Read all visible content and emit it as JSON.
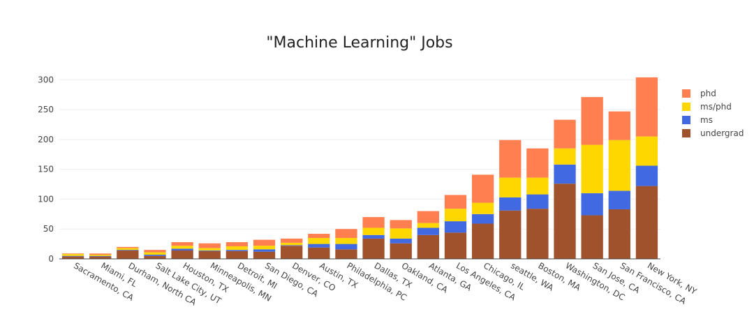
{
  "chart_data": {
    "type": "bar",
    "stacked": true,
    "title": "\"Machine Learning\" Jobs",
    "xlabel": "",
    "ylabel": "",
    "ylim": [
      0,
      305
    ],
    "yticks": [
      0,
      50,
      100,
      150,
      200,
      250,
      300
    ],
    "grid": true,
    "legend_position": "top-right",
    "categories": [
      "Sacramento, CA",
      "Miami, FL",
      "Durham, North CA",
      "Salt Lake City, UT",
      "Houston, TX",
      "Minneapolis, MN",
      "Detroit, MI",
      "San Diego, CA",
      "Denver, CO",
      "Austin, TX",
      "Philadelphia, PC",
      "Dallas, TX",
      "Oakland, CA",
      "Atlanta, GA",
      "Los Angeles, CA",
      "Chicago, IL",
      "seattle, WA",
      "Boston, MA",
      "Washington, DC",
      "San Jose, CA",
      "San Francisco, CA",
      "New York, NY"
    ],
    "series": [
      {
        "name": "undergrad",
        "color": "#a0522d",
        "values": [
          4,
          4,
          14,
          5,
          14,
          13,
          13,
          12,
          22,
          19,
          16,
          34,
          26,
          40,
          44,
          59,
          81,
          84,
          126,
          73,
          83,
          122
        ]
      },
      {
        "name": "ms",
        "color": "#4169e1",
        "values": [
          1,
          1,
          1,
          2,
          3,
          1,
          2,
          4,
          1,
          6,
          9,
          6,
          8,
          12,
          19,
          16,
          22,
          24,
          32,
          37,
          31,
          34
        ]
      },
      {
        "name": "ms/phd",
        "color": "#ffd700",
        "values": [
          3,
          2,
          3,
          4,
          5,
          4,
          6,
          6,
          4,
          10,
          10,
          12,
          17,
          8,
          21,
          19,
          33,
          28,
          27,
          81,
          85,
          49
        ]
      },
      {
        "name": "phd",
        "color": "#ff7f50",
        "values": [
          1,
          2,
          2,
          4,
          6,
          8,
          7,
          10,
          7,
          7,
          15,
          18,
          14,
          20,
          23,
          47,
          63,
          49,
          48,
          80,
          48,
          99
        ]
      }
    ],
    "legend_order": [
      "phd",
      "ms/phd",
      "ms",
      "undergrad"
    ]
  }
}
